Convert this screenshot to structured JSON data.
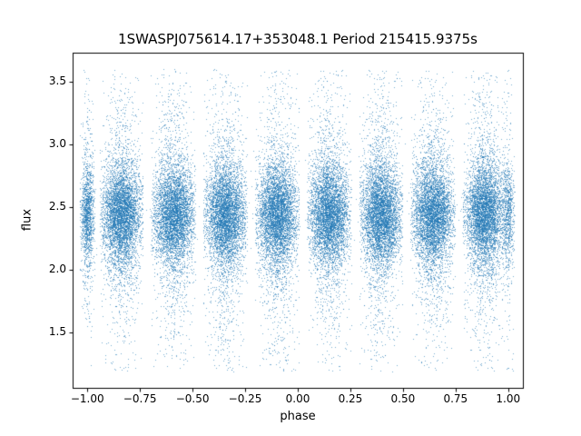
{
  "chart_data": {
    "type": "scatter",
    "title": "1SWASPJ075614.17+353048.1 Period 215415.9375s",
    "xlabel": "phase",
    "ylabel": "flux",
    "xlim": [
      -1.07,
      1.07
    ],
    "ylim": [
      1.06,
      3.73
    ],
    "xticks": [
      -1.0,
      -0.75,
      -0.5,
      -0.25,
      0.0,
      0.25,
      0.5,
      0.75,
      1.0
    ],
    "xtick_labels": [
      "−1.00",
      "−0.75",
      "−0.50",
      "−0.25",
      "0.00",
      "0.25",
      "0.50",
      "0.75",
      "1.00"
    ],
    "yticks": [
      1.5,
      2.0,
      2.5,
      3.0,
      3.5
    ],
    "ytick_labels": [
      "1.5",
      "2.0",
      "2.5",
      "3.0",
      "3.5"
    ],
    "grid": false,
    "legend": null,
    "marker_color": "#1f77b4",
    "marker_alpha": 0.6,
    "marker_size_px": 1,
    "seed": 20240756,
    "points_per_cluster": 5200,
    "background_points": 280,
    "phase_range": [
      -1.02,
      1.02
    ],
    "clusters": [
      {
        "phase_center": -1.0,
        "phase_halfwidth": 0.03,
        "density": 0.28
      },
      {
        "phase_center": -0.838,
        "phase_halfwidth": 0.085,
        "density": 1.0
      },
      {
        "phase_center": -0.592,
        "phase_halfwidth": 0.088,
        "density": 1.0
      },
      {
        "phase_center": -0.345,
        "phase_halfwidth": 0.088,
        "density": 1.0
      },
      {
        "phase_center": -0.099,
        "phase_halfwidth": 0.088,
        "density": 1.0
      },
      {
        "phase_center": 0.148,
        "phase_halfwidth": 0.088,
        "density": 1.0
      },
      {
        "phase_center": 0.394,
        "phase_halfwidth": 0.086,
        "density": 1.0
      },
      {
        "phase_center": 0.641,
        "phase_halfwidth": 0.088,
        "density": 1.0
      },
      {
        "phase_center": 0.887,
        "phase_halfwidth": 0.086,
        "density": 1.0
      },
      {
        "phase_center": 1.0,
        "phase_halfwidth": 0.025,
        "density": 0.15
      }
    ],
    "flux_distribution": {
      "mean": 2.44,
      "core_sigma": 0.18,
      "core_fraction": 0.62,
      "mid_sigma": 0.34,
      "mid_fraction": 0.24,
      "tail_sigma": 0.6,
      "tail_fraction": 0.1,
      "uniform_fraction": 0.04,
      "min": 1.19,
      "max": 3.6
    }
  }
}
